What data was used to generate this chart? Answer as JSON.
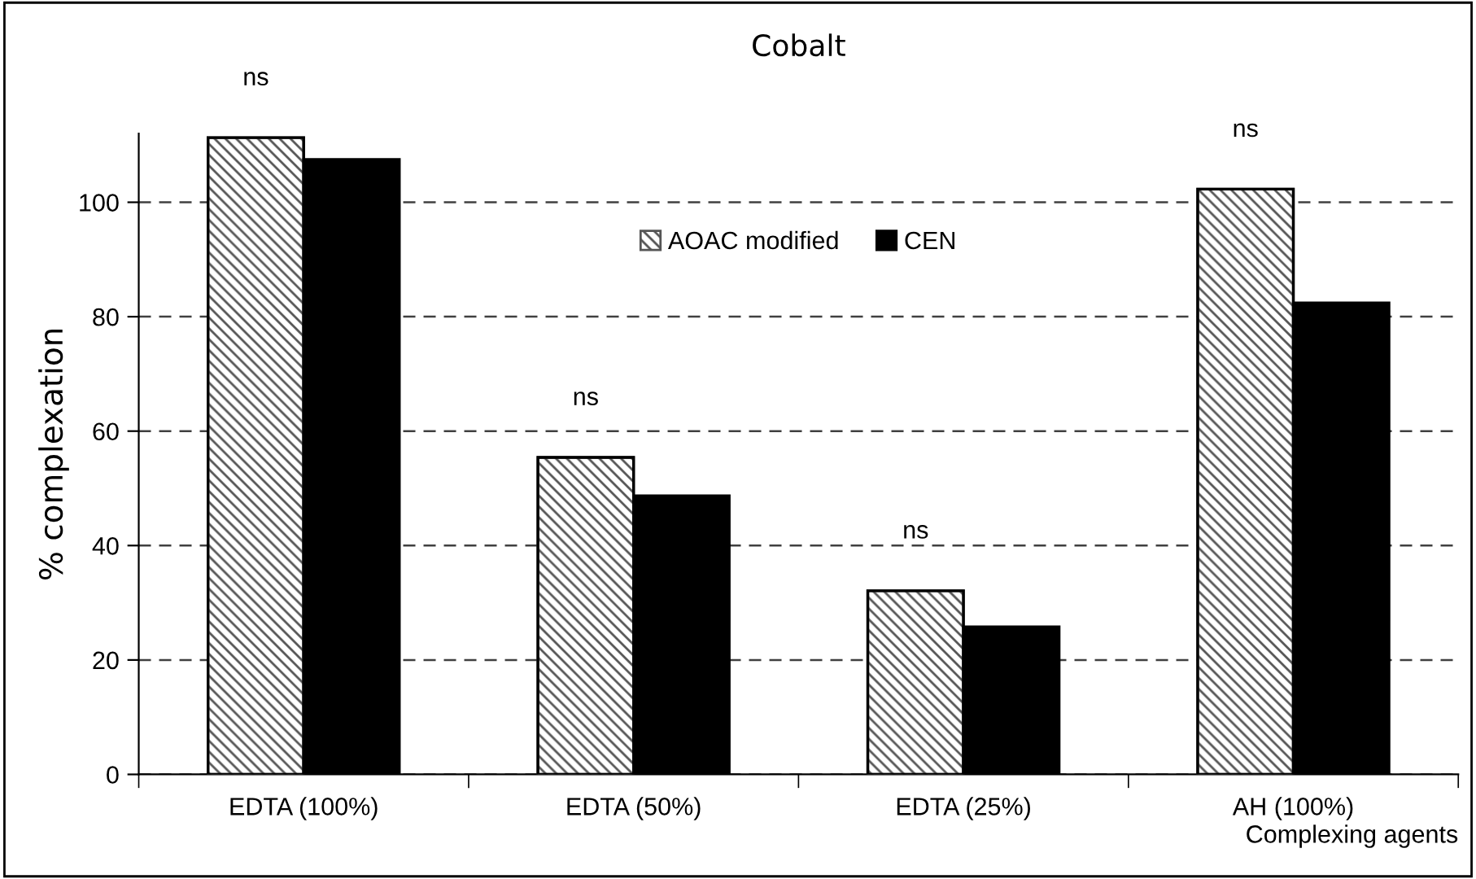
{
  "chart_data": {
    "type": "bar",
    "title": "Cobalt",
    "xlabel": "Complexing agents",
    "ylabel": "% complexation",
    "categories": [
      "EDTA (100%)",
      "EDTA (50%)",
      "EDTA (25%)",
      "AH (100%)"
    ],
    "series": [
      {
        "name": "AOAC modified",
        "color": "#555555",
        "values": [
          111.3,
          55.4,
          32.1,
          102.3
        ]
      },
      {
        "name": "CEN",
        "color": "#000000",
        "values": [
          107.5,
          48.7,
          25.8,
          82.4
        ]
      }
    ],
    "ylim": [
      0,
      112
    ],
    "yticks": [
      0,
      20,
      40,
      60,
      80,
      100
    ],
    "grid": "y",
    "legend": "top",
    "annotations": [
      "ns",
      "ns",
      "ns",
      "ns"
    ]
  }
}
